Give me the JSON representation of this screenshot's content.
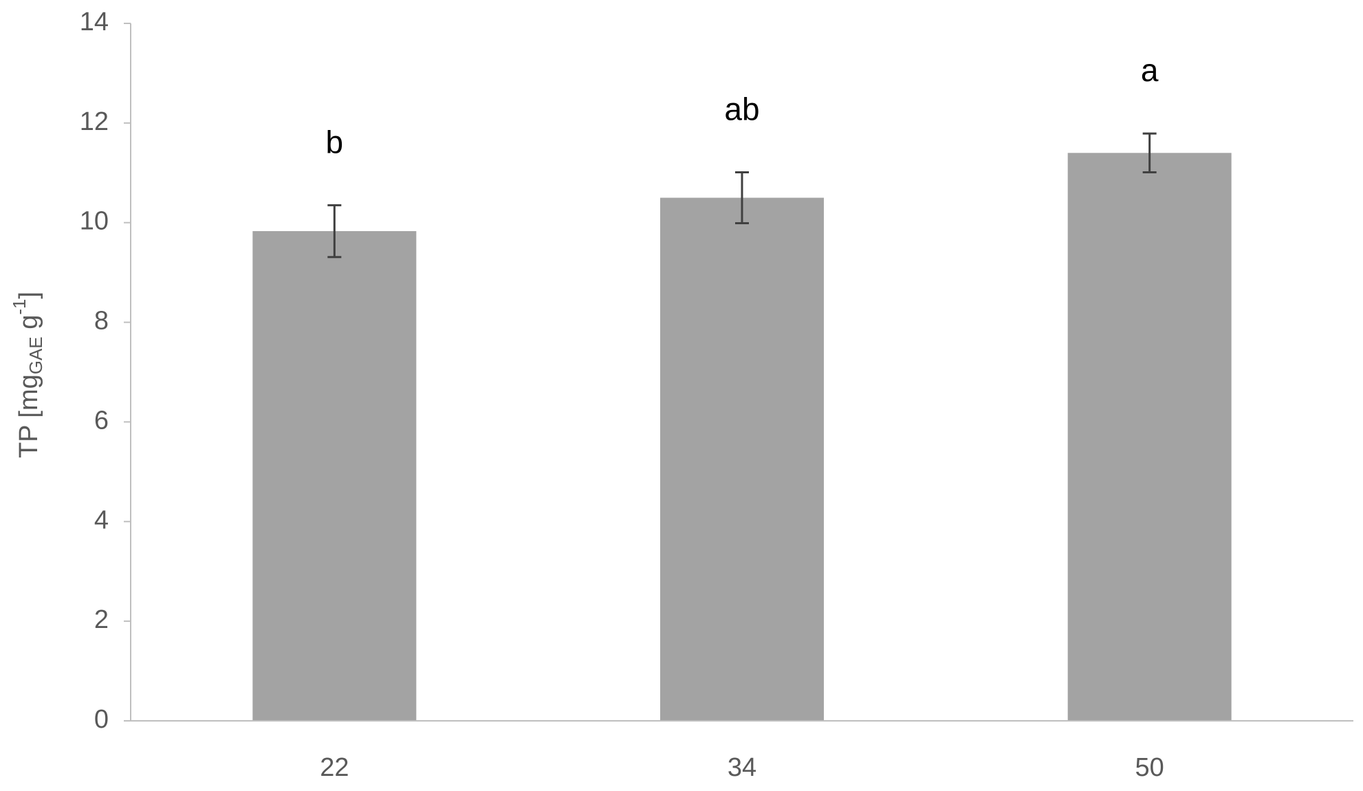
{
  "chart_data": {
    "type": "bar",
    "categories": [
      "22",
      "34",
      "50"
    ],
    "values": [
      9.83,
      10.5,
      11.4
    ],
    "errors": [
      0.52,
      0.51,
      0.39
    ],
    "annotations": [
      "b",
      "ab",
      "a"
    ],
    "color": "#a3a3a3",
    "y_label": [
      "TP [mg",
      "GAE",
      " g",
      "-1",
      "]"
    ],
    "ylim": [
      0,
      14
    ],
    "yticks": [
      0,
      2,
      4,
      6,
      8,
      10,
      12,
      14
    ],
    "grid": false
  }
}
